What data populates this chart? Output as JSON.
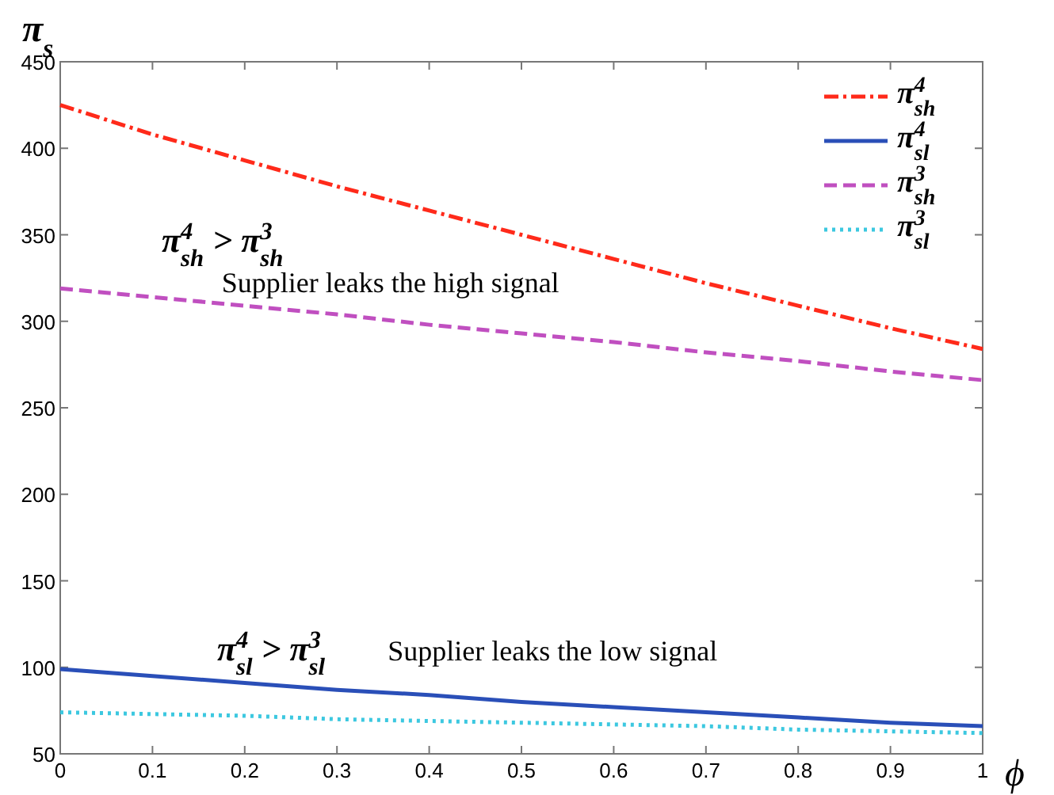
{
  "chart_data": {
    "type": "line",
    "ylabel": "π$_{s}$",
    "xlabel": "ϕ",
    "x": [
      0,
      0.1,
      0.2,
      0.3,
      0.4,
      0.5,
      0.6,
      0.7,
      0.8,
      0.9,
      1
    ],
    "xlim": [
      0,
      1
    ],
    "xticks": [
      0,
      0.1,
      0.2,
      0.3,
      0.4,
      0.5,
      0.6,
      0.7,
      0.8,
      0.9,
      1
    ],
    "ylim": [
      50,
      450
    ],
    "yticks": [
      50,
      100,
      150,
      200,
      250,
      300,
      350,
      400,
      450
    ],
    "grid": false,
    "legend": "top right",
    "series": [
      {
        "name": "π$^{4}$$_{sh}$",
        "color": "#ff2a1a",
        "line_style": "dashdot",
        "values": [
          425,
          408,
          393,
          378,
          364,
          350,
          336,
          322,
          309,
          296,
          284
        ]
      },
      {
        "name": "π$^{4}$$_{sl}$",
        "color": "#2a4fb8",
        "line_style": "solid",
        "values": [
          99,
          95,
          91,
          87,
          84,
          80,
          77,
          74,
          71,
          68,
          66
        ]
      },
      {
        "name": "π$^{3}$$_{sh}$",
        "color": "#c04fc0",
        "line_style": "dashed",
        "values": [
          319,
          314,
          309,
          304,
          298,
          293,
          288,
          282,
          277,
          271,
          266
        ]
      },
      {
        "name": "π$^{3}$$_{sl}$",
        "color": "#3cc8e0",
        "line_style": "dotted",
        "values": [
          74,
          73,
          72,
          70,
          69,
          68,
          67,
          66,
          64,
          63,
          62
        ]
      }
    ],
    "annotations": [
      "π$^{4}$$_{sh}$ > π$^{3}$$_{sh}$",
      "Supplier leaks the high signal",
      "π$^{4}$$_{sl}$ > π$^{3}$$_{sl}$",
      "Supplier leaks the low signal"
    ]
  }
}
